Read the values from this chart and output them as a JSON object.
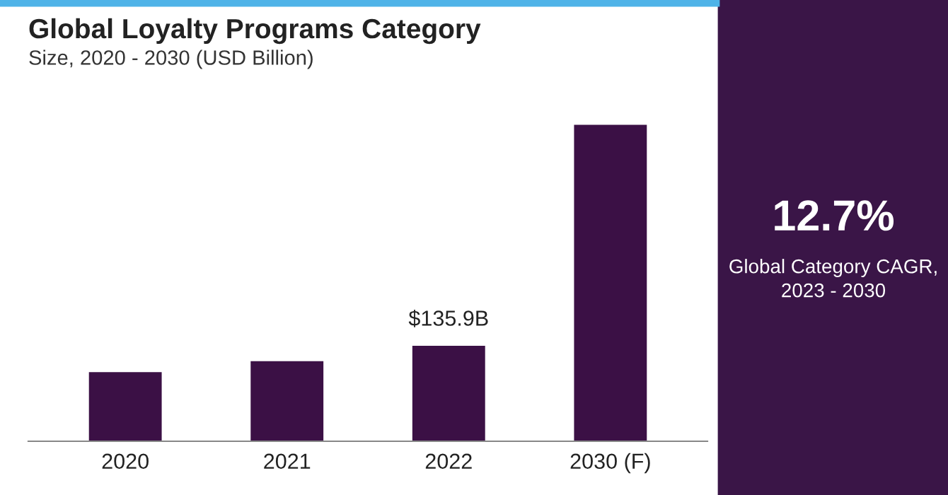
{
  "chart_data": {
    "type": "bar",
    "title": "Global Loyalty Programs Category",
    "subtitle": "Size, 2020 - 2030 (USD Billion)",
    "categories": [
      "2020",
      "2021",
      "2022",
      "2030 (F)"
    ],
    "values": [
      98.5,
      114,
      135.9,
      451
    ],
    "value_labels": [
      null,
      null,
      "$135.9B",
      null
    ],
    "color": "#3b1045",
    "grid": false,
    "legend": false,
    "annotations": [
      "12.7%",
      "Global Category CAGR,\n2023 - 2030"
    ]
  }
}
